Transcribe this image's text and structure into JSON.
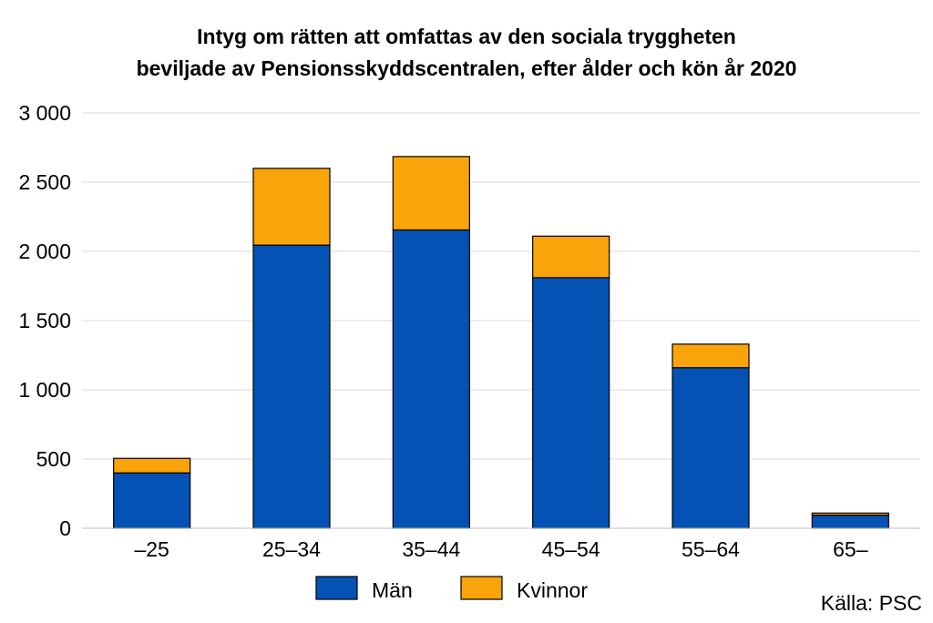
{
  "chart_data": {
    "type": "bar",
    "stacked": true,
    "title_lines": [
      "Intyg om rätten att omfattas av den sociala tryggheten",
      "beviljade av Pensionsskyddscentralen, efter ålder och kön år 2020"
    ],
    "categories": [
      "–25",
      "25–34",
      "35–44",
      "45–54",
      "55–64",
      "65–"
    ],
    "series": [
      {
        "name": "Män",
        "color": "#0552B5",
        "values": [
          400,
          2045,
          2155,
          1810,
          1160,
          95
        ]
      },
      {
        "name": "Kvinnor",
        "color": "#F9A40A",
        "values": [
          105,
          555,
          530,
          300,
          170,
          15
        ]
      }
    ],
    "ylim": [
      0,
      3000
    ],
    "yticks": [
      0,
      500,
      1000,
      1500,
      2000,
      2500,
      3000
    ],
    "ytick_labels": [
      "0",
      "500",
      "1 000",
      "1 500",
      "2 000",
      "2 500",
      "3 000"
    ],
    "grid": true,
    "legend": "bottom-center",
    "source": "Källa: PSC"
  }
}
